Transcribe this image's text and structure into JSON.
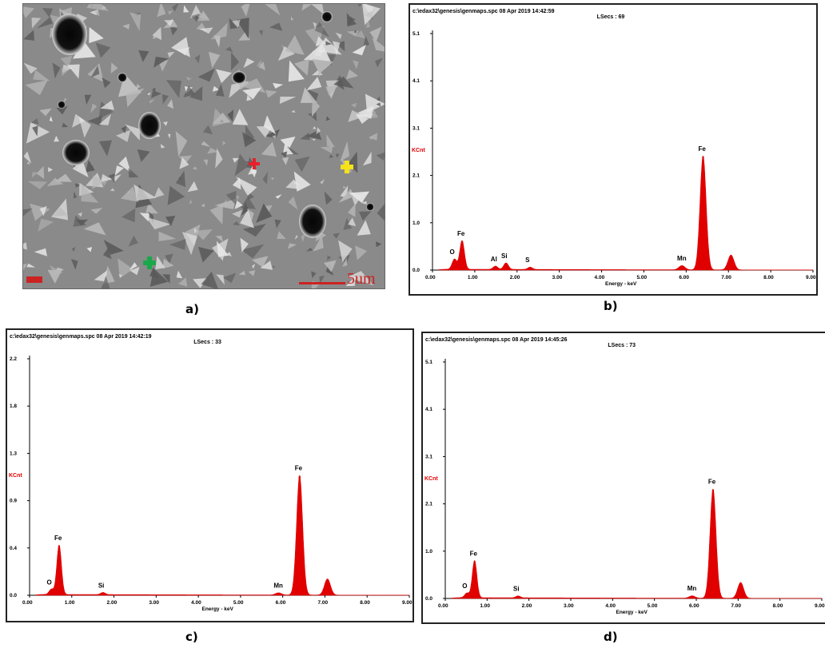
{
  "captions": {
    "a": "a)",
    "b": "b)",
    "c": "c)",
    "d": "d)"
  },
  "sem": {
    "scale_text": "5um",
    "marker_colors": {
      "red": "#e8202a",
      "yellow": "#f5e21a",
      "green": "#1aa84a"
    }
  },
  "chart_data": [
    {
      "id": "b",
      "type": "area",
      "header_line1": "c:\\edax32\\genesis\\genmaps.spc  08 Apr 2019 14:42:59",
      "header_line2": "LSecs : 69",
      "ylabel": "KCnt",
      "xlabel": "Energy - keV",
      "y_ticks": [
        "0.0",
        "1.0",
        "2.1",
        "3.1",
        "4.1",
        "5.1"
      ],
      "x_ticks": [
        "0.00",
        "1.00",
        "2.00",
        "3.00",
        "4.00",
        "5.00",
        "6.00",
        "7.00",
        "8.00",
        "9.00"
      ],
      "ylim": [
        0,
        5.1
      ],
      "xlim": [
        0,
        9
      ],
      "color": "#e00000",
      "peaks": [
        {
          "label": "O",
          "x": 0.52,
          "y": 0.22
        },
        {
          "label": "Fe",
          "x": 0.7,
          "y": 0.62
        },
        {
          "label": "Al",
          "x": 1.49,
          "y": 0.07
        },
        {
          "label": "Si",
          "x": 1.74,
          "y": 0.14
        },
        {
          "label": "S",
          "x": 2.31,
          "y": 0.05
        },
        {
          "label": "Mn",
          "x": 5.9,
          "y": 0.09
        },
        {
          "label": "Fe",
          "x": 6.4,
          "y": 2.45
        },
        {
          "label": "",
          "x": 7.06,
          "y": 0.32
        }
      ]
    },
    {
      "id": "c",
      "type": "area",
      "header_line1": "c:\\edax32\\genesis\\genmaps.spc  08 Apr 2019 14:42:19",
      "header_line2": "LSecs : 33",
      "ylabel": "KCnt",
      "xlabel": "Energy - keV",
      "y_ticks": [
        "0.0",
        "0.4",
        "0.9",
        "1.3",
        "1.8",
        "2.2"
      ],
      "x_ticks": [
        "0.00",
        "1.00",
        "2.00",
        "3.00",
        "4.00",
        "5.00",
        "6.00",
        "7.00",
        "8.00",
        "9.00"
      ],
      "ylim": [
        0,
        2.2
      ],
      "xlim": [
        0,
        9
      ],
      "color": "#e00000",
      "peaks": [
        {
          "label": "O",
          "x": 0.52,
          "y": 0.05
        },
        {
          "label": "Fe",
          "x": 0.7,
          "y": 0.46
        },
        {
          "label": "Si",
          "x": 1.74,
          "y": 0.02
        },
        {
          "label": "Mn",
          "x": 5.9,
          "y": 0.02
        },
        {
          "label": "Fe",
          "x": 6.4,
          "y": 1.11
        },
        {
          "label": "",
          "x": 7.06,
          "y": 0.15
        }
      ]
    },
    {
      "id": "d",
      "type": "area",
      "header_line1": "c:\\edax32\\genesis\\genmaps.spc  08 Apr 2019 14:45:26",
      "header_line2": "LSecs : 73",
      "ylabel": "KCnt",
      "xlabel": "Energy - keV",
      "y_ticks": [
        "0.0",
        "1.0",
        "2.1",
        "3.1",
        "4.1",
        "5.1"
      ],
      "x_ticks": [
        "0.00",
        "1.00",
        "2.00",
        "3.00",
        "4.00",
        "5.00",
        "6.00",
        "7.00",
        "8.00",
        "9.00"
      ],
      "ylim": [
        0,
        5.1
      ],
      "xlim": [
        0,
        9
      ],
      "color": "#e00000",
      "peaks": [
        {
          "label": "O",
          "x": 0.52,
          "y": 0.1
        },
        {
          "label": "Fe",
          "x": 0.7,
          "y": 0.8
        },
        {
          "label": "Si",
          "x": 1.74,
          "y": 0.04
        },
        {
          "label": "Mn",
          "x": 5.9,
          "y": 0.05
        },
        {
          "label": "Fe",
          "x": 6.4,
          "y": 2.35
        },
        {
          "label": "",
          "x": 7.06,
          "y": 0.34
        }
      ]
    }
  ]
}
